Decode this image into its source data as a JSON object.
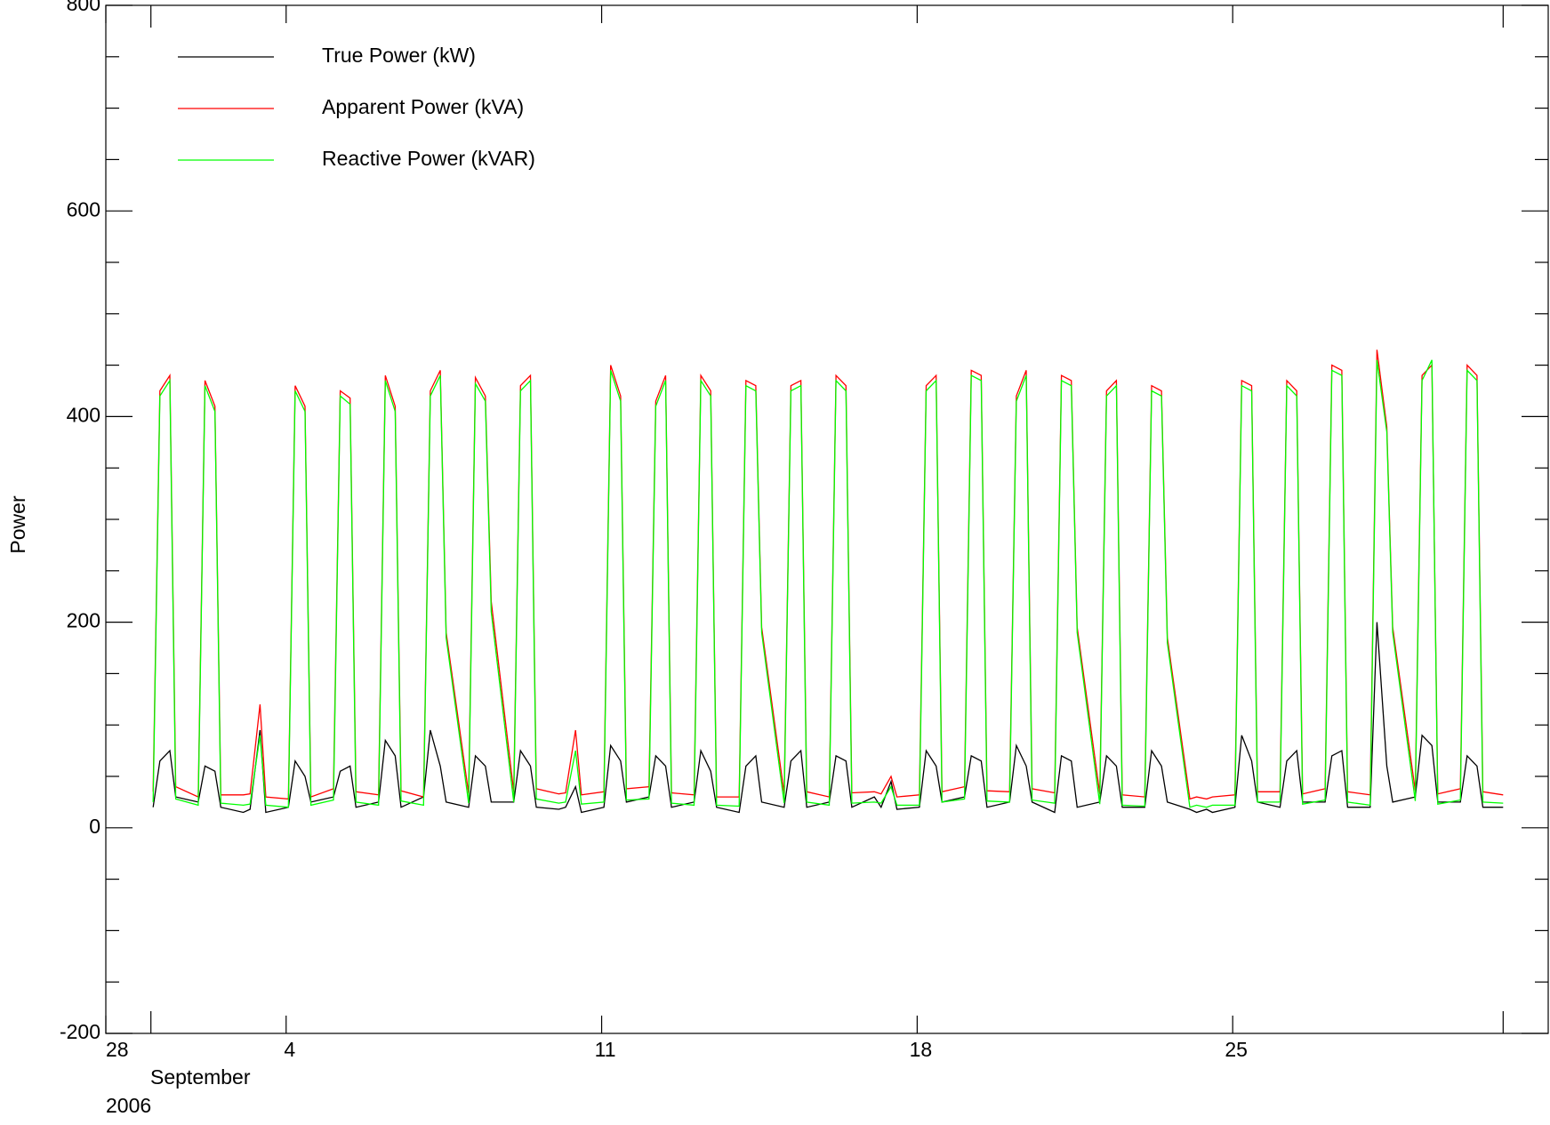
{
  "chart_data": {
    "type": "line",
    "y_label": "Power",
    "x_sublabels": [
      "September",
      "2006"
    ],
    "xlim": [
      0,
      32
    ],
    "xticks": [
      {
        "value": 0,
        "label": "28"
      },
      4,
      11,
      18,
      25
    ],
    "xminorticks": [
      1,
      31
    ],
    "ylim": [
      -200,
      800
    ],
    "yticks": [
      -200,
      0,
      200,
      400,
      600,
      800
    ],
    "yminorticks": [
      -150,
      -100,
      -50,
      50,
      100,
      150,
      250,
      300,
      350,
      450,
      500,
      550,
      650,
      700,
      750
    ],
    "legend": "top-left",
    "x": [
      1.05,
      1.2,
      1.42,
      1.55,
      2.05,
      2.2,
      2.42,
      2.55,
      3.05,
      3.2,
      3.42,
      3.55,
      4.05,
      4.2,
      4.42,
      4.55,
      5.05,
      5.2,
      5.42,
      5.55,
      6.05,
      6.2,
      6.42,
      6.55,
      7.05,
      7.2,
      7.42,
      7.55,
      8.05,
      8.2,
      8.42,
      8.55,
      9.05,
      9.2,
      9.42,
      9.55,
      10.05,
      10.2,
      10.42,
      10.55,
      11.05,
      11.2,
      11.42,
      11.55,
      12.05,
      12.2,
      12.42,
      12.55,
      13.05,
      13.2,
      13.42,
      13.55,
      14.05,
      14.2,
      14.42,
      14.55,
      15.05,
      15.2,
      15.42,
      15.55,
      16.05,
      16.2,
      16.42,
      16.55,
      17.05,
      17.2,
      17.42,
      17.55,
      18.05,
      18.2,
      18.42,
      18.55,
      19.05,
      19.2,
      19.42,
      19.55,
      20.05,
      20.2,
      20.42,
      20.55,
      21.05,
      21.2,
      21.42,
      21.55,
      22.05,
      22.2,
      22.42,
      22.55,
      23.05,
      23.2,
      23.42,
      23.55,
      24.05,
      24.2,
      24.42,
      24.55,
      25.05,
      25.2,
      25.42,
      25.55,
      26.05,
      26.2,
      26.42,
      26.55,
      27.05,
      27.2,
      27.42,
      27.55,
      28.05,
      28.2,
      28.42,
      28.55,
      29.05,
      29.2,
      29.42,
      29.55,
      30.05,
      30.2,
      30.42,
      30.55,
      31.0
    ],
    "series": [
      {
        "name": "True Power (kW)",
        "color": "#000000",
        "values": [
          20,
          65,
          75,
          30,
          25,
          60,
          55,
          20,
          15,
          18,
          95,
          15,
          20,
          65,
          50,
          25,
          30,
          55,
          60,
          20,
          25,
          85,
          70,
          20,
          30,
          95,
          60,
          25,
          20,
          70,
          60,
          25,
          25,
          75,
          60,
          20,
          18,
          20,
          40,
          15,
          20,
          80,
          65,
          25,
          30,
          70,
          60,
          20,
          25,
          75,
          55,
          20,
          15,
          60,
          70,
          25,
          20,
          65,
          75,
          20,
          25,
          70,
          65,
          20,
          30,
          20,
          45,
          18,
          20,
          75,
          60,
          25,
          30,
          70,
          65,
          20,
          25,
          80,
          60,
          25,
          15,
          70,
          65,
          20,
          25,
          70,
          60,
          20,
          20,
          75,
          60,
          25,
          18,
          15,
          18,
          15,
          20,
          90,
          65,
          25,
          20,
          65,
          75,
          25,
          25,
          70,
          75,
          20,
          20,
          200,
          60,
          25,
          30,
          90,
          80,
          25,
          25,
          70,
          60,
          20,
          20
        ]
      },
      {
        "name": "Apparent Power (kVA)",
        "color": "#ff0000",
        "values": [
          35,
          425,
          440,
          40,
          30,
          435,
          410,
          32,
          32,
          33,
          120,
          30,
          28,
          430,
          410,
          30,
          38,
          425,
          418,
          35,
          32,
          440,
          410,
          36,
          30,
          425,
          445,
          190,
          33,
          438,
          420,
          220,
          35,
          430,
          440,
          38,
          33,
          34,
          95,
          32,
          35,
          450,
          420,
          38,
          40,
          415,
          440,
          34,
          32,
          440,
          425,
          30,
          30,
          435,
          430,
          195,
          33,
          430,
          435,
          35,
          30,
          440,
          430,
          34,
          35,
          33,
          50,
          30,
          32,
          430,
          440,
          35,
          40,
          445,
          440,
          36,
          35,
          420,
          445,
          38,
          34,
          440,
          435,
          195,
          33,
          425,
          435,
          32,
          30,
          430,
          425,
          185,
          28,
          30,
          28,
          30,
          32,
          435,
          430,
          35,
          35,
          435,
          425,
          33,
          38,
          450,
          445,
          35,
          32,
          465,
          390,
          195,
          36,
          440,
          450,
          33,
          38,
          450,
          440,
          35,
          32
        ]
      },
      {
        "name": "Reactive Power (kVAR)",
        "color": "#00ff00",
        "values": [
          25,
          420,
          435,
          28,
          22,
          430,
          405,
          24,
          22,
          23,
          90,
          22,
          20,
          425,
          405,
          22,
          27,
          420,
          412,
          25,
          22,
          435,
          405,
          26,
          22,
          420,
          440,
          185,
          24,
          432,
          415,
          210,
          25,
          425,
          435,
          28,
          24,
          25,
          75,
          23,
          25,
          445,
          415,
          27,
          28,
          410,
          435,
          24,
          22,
          435,
          420,
          22,
          21,
          430,
          425,
          190,
          24,
          425,
          430,
          25,
          22,
          435,
          425,
          24,
          25,
          24,
          40,
          22,
          22,
          425,
          435,
          25,
          28,
          440,
          435,
          26,
          25,
          415,
          440,
          27,
          24,
          435,
          430,
          190,
          23,
          420,
          430,
          22,
          21,
          425,
          420,
          180,
          20,
          22,
          20,
          22,
          22,
          430,
          425,
          25,
          25,
          430,
          420,
          23,
          27,
          445,
          440,
          25,
          22,
          455,
          385,
          190,
          26,
          435,
          455,
          23,
          27,
          445,
          435,
          25,
          24
        ]
      }
    ]
  }
}
